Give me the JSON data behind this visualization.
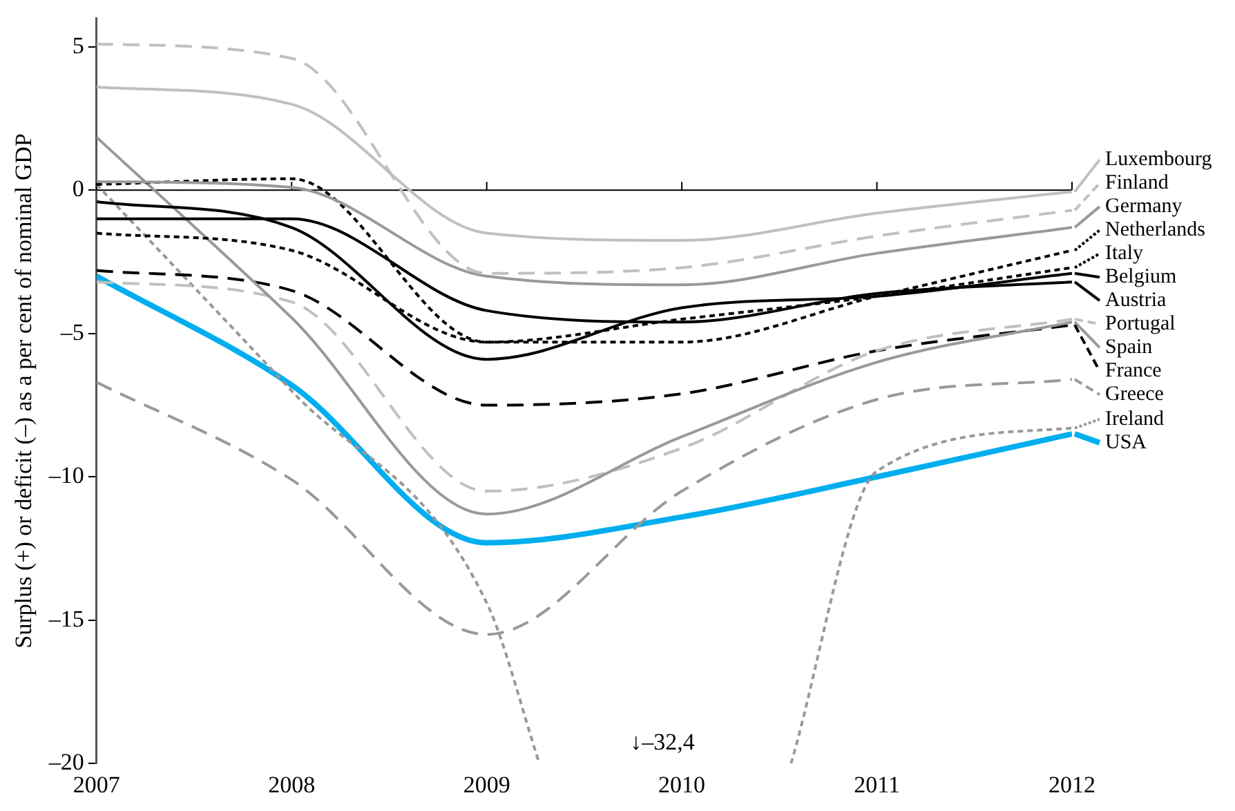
{
  "chart_data": {
    "type": "line",
    "ylabel": "Surplus (+) or deficit (–) as a per cent of nominal GDP",
    "x": [
      2007,
      2008,
      2009,
      2010,
      2011,
      2012
    ],
    "xlim": [
      2007,
      2012
    ],
    "xticks": [
      2007,
      2008,
      2009,
      2010,
      2011,
      2012
    ],
    "ylim": [
      -20,
      6
    ],
    "yticks": [
      {
        "value": -20,
        "label": "–20"
      },
      {
        "value": -15,
        "label": "–15"
      },
      {
        "value": -10,
        "label": "–10"
      },
      {
        "value": -5,
        "label": "–5"
      },
      0,
      5
    ],
    "grid": false,
    "legend": "right",
    "marker": "none",
    "ref_lines": [
      {
        "axis": "y",
        "value": 0,
        "color": "#000000"
      }
    ],
    "annotations": [
      "↓–32,4"
    ],
    "series": [
      {
        "name": "Luxembourg",
        "color": "#c0c0c0",
        "line_style": "solid",
        "values": [
          3.6,
          3.0,
          -1.5,
          -1.75,
          -0.8,
          -0.05
        ]
      },
      {
        "name": "Finland",
        "color": "#c0c0c0",
        "line_style": "dashed",
        "values": [
          5.1,
          4.6,
          -2.9,
          -2.7,
          -1.6,
          -0.7
        ]
      },
      {
        "name": "Germany",
        "color": "#999999",
        "line_style": "solid",
        "values": [
          0.3,
          0.1,
          -3.0,
          -3.3,
          -2.2,
          -1.3
        ]
      },
      {
        "name": "Netherlands",
        "color": "#000000",
        "line_style": "dotted",
        "values": [
          0.2,
          0.4,
          -5.3,
          -5.3,
          -3.7,
          -2.1
        ]
      },
      {
        "name": "Italy",
        "color": "#000000",
        "line_style": "dotted",
        "values": [
          -1.5,
          -2.1,
          -5.3,
          -4.5,
          -3.7,
          -2.7
        ]
      },
      {
        "name": "Belgium",
        "color": "#000000",
        "line_style": "solid",
        "values": [
          -0.4,
          -1.3,
          -5.9,
          -4.1,
          -3.7,
          -2.9
        ]
      },
      {
        "name": "Austria",
        "color": "#000000",
        "line_style": "solid",
        "values": [
          -1.0,
          -1.0,
          -4.2,
          -4.6,
          -3.6,
          -3.2
        ]
      },
      {
        "name": "Spain",
        "color": "#999999",
        "line_style": "solid",
        "values": [
          1.85,
          -4.45,
          -11.3,
          -8.6,
          -6.0,
          -4.6
        ]
      },
      {
        "name": "Portugal",
        "color": "#c0c0c0",
        "line_style": "dashed",
        "values": [
          -3.2,
          -3.9,
          -10.5,
          -9.0,
          -5.6,
          -4.5
        ]
      },
      {
        "name": "France",
        "color": "#000000",
        "line_style": "dashed",
        "values": [
          -2.8,
          -3.5,
          -7.5,
          -7.1,
          -5.6,
          -4.7
        ]
      },
      {
        "name": "Greece",
        "color": "#999999",
        "line_style": "dashed",
        "values": [
          -6.7,
          -10.1,
          -15.5,
          -10.5,
          -7.3,
          -6.6
        ]
      },
      {
        "name": "Ireland",
        "color": "#999999",
        "line_style": "dotted",
        "x": [
          2007,
          2008,
          2009,
          2009.27,
          2010,
          2010.56,
          2011,
          2012
        ],
        "values": [
          0.2,
          -7.0,
          -14.4,
          -20,
          null,
          -20,
          -9.8,
          -8.3
        ]
      },
      {
        "name": "USA",
        "color": "#00aeef",
        "line_style": "solid",
        "values": [
          -3.0,
          -6.8,
          -12.3,
          -11.4,
          -10.0,
          -8.5
        ]
      }
    ]
  }
}
